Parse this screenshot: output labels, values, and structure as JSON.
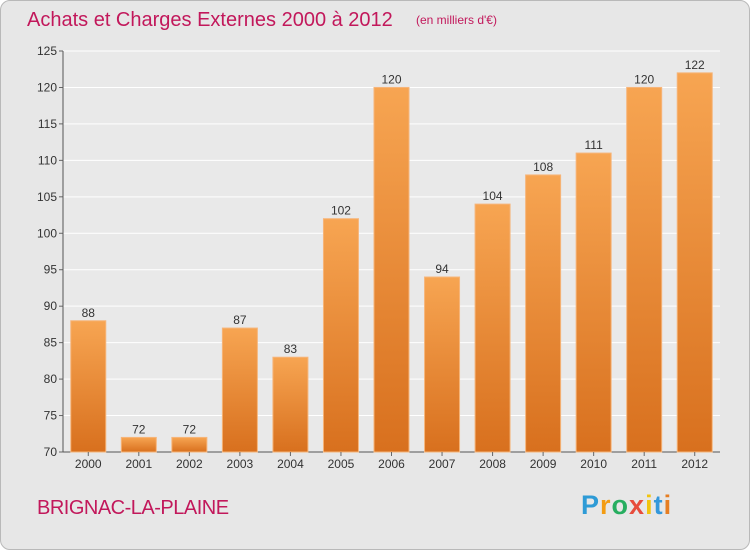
{
  "chart_data": {
    "type": "bar",
    "title": "Achats et Charges Externes 2000 à 2012",
    "subtitle": "(en milliers d'€)",
    "categories": [
      "2000",
      "2001",
      "2002",
      "2003",
      "2004",
      "2005",
      "2006",
      "2007",
      "2008",
      "2009",
      "2010",
      "2011",
      "2012"
    ],
    "values": [
      88,
      72,
      72,
      87,
      83,
      102,
      120,
      94,
      104,
      108,
      111,
      120,
      122
    ],
    "ylim": [
      70,
      125
    ],
    "yticks": [
      70,
      75,
      80,
      85,
      90,
      95,
      100,
      105,
      110,
      115,
      120,
      125
    ],
    "grid": true,
    "bar_color": "#f0953a"
  },
  "commune": "BRIGNAC-LA-PLAINE",
  "logo": {
    "letters": [
      "P",
      "r",
      "o",
      "x",
      "i",
      "t",
      "i"
    ],
    "colors": [
      "#2e9bd6",
      "#f39c12",
      "#27ae60",
      "#e74c3c",
      "#f1c40f",
      "#3498db",
      "#e67e22"
    ]
  }
}
